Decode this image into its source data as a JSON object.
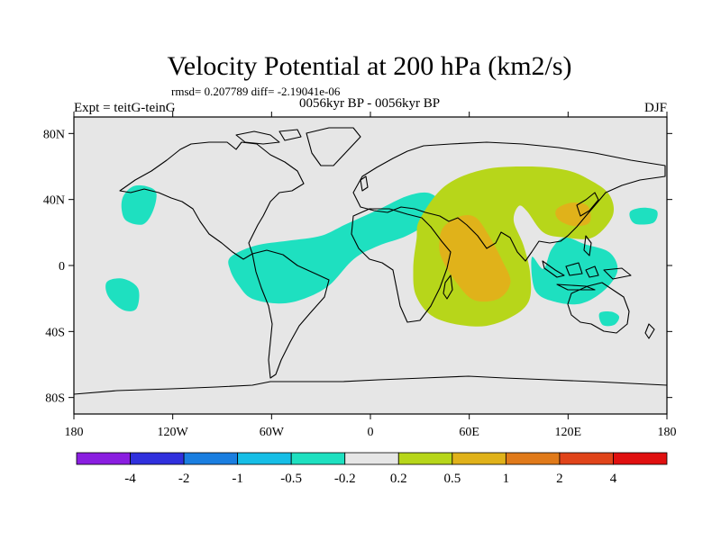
{
  "chart_data": {
    "type": "contour-map",
    "title": "Velocity Potential at 200 hPa (km2/s)",
    "stats_line": "rmsd= 0.207789 diff= -2.19041e-06",
    "left_label": "Expt = teitG-teinG",
    "center_label": "0056kyr BP - 0056kyr BP",
    "right_label": "DJF",
    "x_axis": {
      "range": [
        -180,
        180
      ],
      "ticks": [
        -180,
        -120,
        -60,
        0,
        60,
        120,
        180
      ],
      "tick_labels": [
        "180",
        "120W",
        "60W",
        "0",
        "60E",
        "120E",
        "180"
      ]
    },
    "y_axis": {
      "range": [
        -90,
        90
      ],
      "ticks": [
        80,
        40,
        0,
        -40,
        -80
      ],
      "tick_labels": [
        "80N",
        "40N",
        "0",
        "40S",
        "80S"
      ]
    },
    "colorbar": {
      "levels": [
        "-4",
        "-2",
        "-1",
        "-0.5",
        "-0.2",
        "0.2",
        "0.5",
        "1",
        "2",
        "4"
      ],
      "colors": [
        "#8a1ee0",
        "#3030dd",
        "#1a7ee0",
        "#16bee6",
        "#1ee0c0",
        "#e6e6e6",
        "#b7d61a",
        "#e0b21a",
        "#e07a1a",
        "#e0441a",
        "#e01010"
      ]
    },
    "regions": [
      {
        "name": "n-pacific-negative",
        "level": "-0.5 to -0.2",
        "color": "#1ee0c0",
        "lonlat": [
          [
            -150,
            42
          ],
          [
            -144,
            48
          ],
          [
            -136,
            48
          ],
          [
            -130,
            44
          ],
          [
            -132,
            33
          ],
          [
            -138,
            25
          ],
          [
            -148,
            27
          ],
          [
            -151,
            34
          ]
        ]
      },
      {
        "name": "s-pacific-negative",
        "level": "-0.5 to -0.2",
        "color": "#1ee0c0",
        "lonlat": [
          [
            -160,
            -10
          ],
          [
            -150,
            -8
          ],
          [
            -141,
            -14
          ],
          [
            -142,
            -26
          ],
          [
            -150,
            -27
          ],
          [
            -159,
            -19
          ]
        ]
      },
      {
        "name": "atlantic-negative-band",
        "level": "-0.5 to -0.2",
        "color": "#1ee0c0",
        "lonlat": [
          [
            -85,
            5
          ],
          [
            -70,
            12
          ],
          [
            -50,
            15
          ],
          [
            -30,
            18
          ],
          [
            -15,
            25
          ],
          [
            5,
            34
          ],
          [
            22,
            42
          ],
          [
            35,
            44
          ],
          [
            42,
            38
          ],
          [
            38,
            28
          ],
          [
            22,
            18
          ],
          [
            5,
            12
          ],
          [
            -10,
            4
          ],
          [
            -25,
            -12
          ],
          [
            -40,
            -20
          ],
          [
            -55,
            -23
          ],
          [
            -72,
            -20
          ],
          [
            -80,
            -12
          ],
          [
            -85,
            -3
          ]
        ]
      },
      {
        "name": "maritime-negative",
        "level": "-0.5 to -0.2",
        "color": "#1ee0c0",
        "lonlat": [
          [
            98,
            5
          ],
          [
            105,
            -2
          ],
          [
            110,
            10
          ],
          [
            118,
            17
          ],
          [
            130,
            13
          ],
          [
            145,
            8
          ],
          [
            150,
            -3
          ],
          [
            142,
            -15
          ],
          [
            128,
            -23
          ],
          [
            112,
            -22
          ],
          [
            100,
            -15
          ]
        ]
      },
      {
        "name": "w-pacific-negative-small",
        "level": "-0.5 to -0.2",
        "color": "#1ee0c0",
        "lonlat": [
          [
            158,
            33
          ],
          [
            166,
            35
          ],
          [
            174,
            33
          ],
          [
            172,
            26
          ],
          [
            162,
            25
          ],
          [
            158,
            28
          ]
        ]
      },
      {
        "name": "australia-negative-small",
        "level": "-0.5 to -0.2",
        "color": "#1ee0c0",
        "lonlat": [
          [
            139,
            -29
          ],
          [
            146,
            -28
          ],
          [
            151,
            -31
          ],
          [
            148,
            -36
          ],
          [
            141,
            -36
          ]
        ]
      },
      {
        "name": "indian-positive-horseshoe",
        "level": "0.2 to 0.5",
        "color": "#b7d61a",
        "lonlat": [
          [
            30,
            28
          ],
          [
            45,
            48
          ],
          [
            68,
            58
          ],
          [
            95,
            60
          ],
          [
            118,
            58
          ],
          [
            133,
            52
          ],
          [
            145,
            43
          ],
          [
            147,
            30
          ],
          [
            135,
            17
          ],
          [
            118,
            17
          ],
          [
            105,
            20
          ],
          [
            95,
            33
          ],
          [
            90,
            36
          ],
          [
            87,
            27
          ],
          [
            93,
            12
          ],
          [
            97,
            -5
          ],
          [
            96,
            -22
          ],
          [
            84,
            -32
          ],
          [
            65,
            -37
          ],
          [
            40,
            -32
          ],
          [
            28,
            -19
          ],
          [
            26,
            -2
          ],
          [
            28,
            16
          ]
        ]
      },
      {
        "name": "indian-positive-core",
        "level": "0.5 to 1",
        "color": "#e0b21a",
        "lonlat": [
          [
            45,
            24
          ],
          [
            55,
            30
          ],
          [
            64,
            29
          ],
          [
            72,
            18
          ],
          [
            80,
            3
          ],
          [
            85,
            -10
          ],
          [
            78,
            -20
          ],
          [
            63,
            -21
          ],
          [
            52,
            -10
          ],
          [
            43,
            5
          ],
          [
            42,
            16
          ]
        ]
      },
      {
        "name": "china-positive-core",
        "level": "0.5 to 1",
        "color": "#e0b21a",
        "lonlat": [
          [
            113,
            34
          ],
          [
            122,
            38
          ],
          [
            132,
            36
          ],
          [
            133,
            26
          ],
          [
            123,
            24
          ],
          [
            114,
            28
          ]
        ]
      }
    ]
  }
}
